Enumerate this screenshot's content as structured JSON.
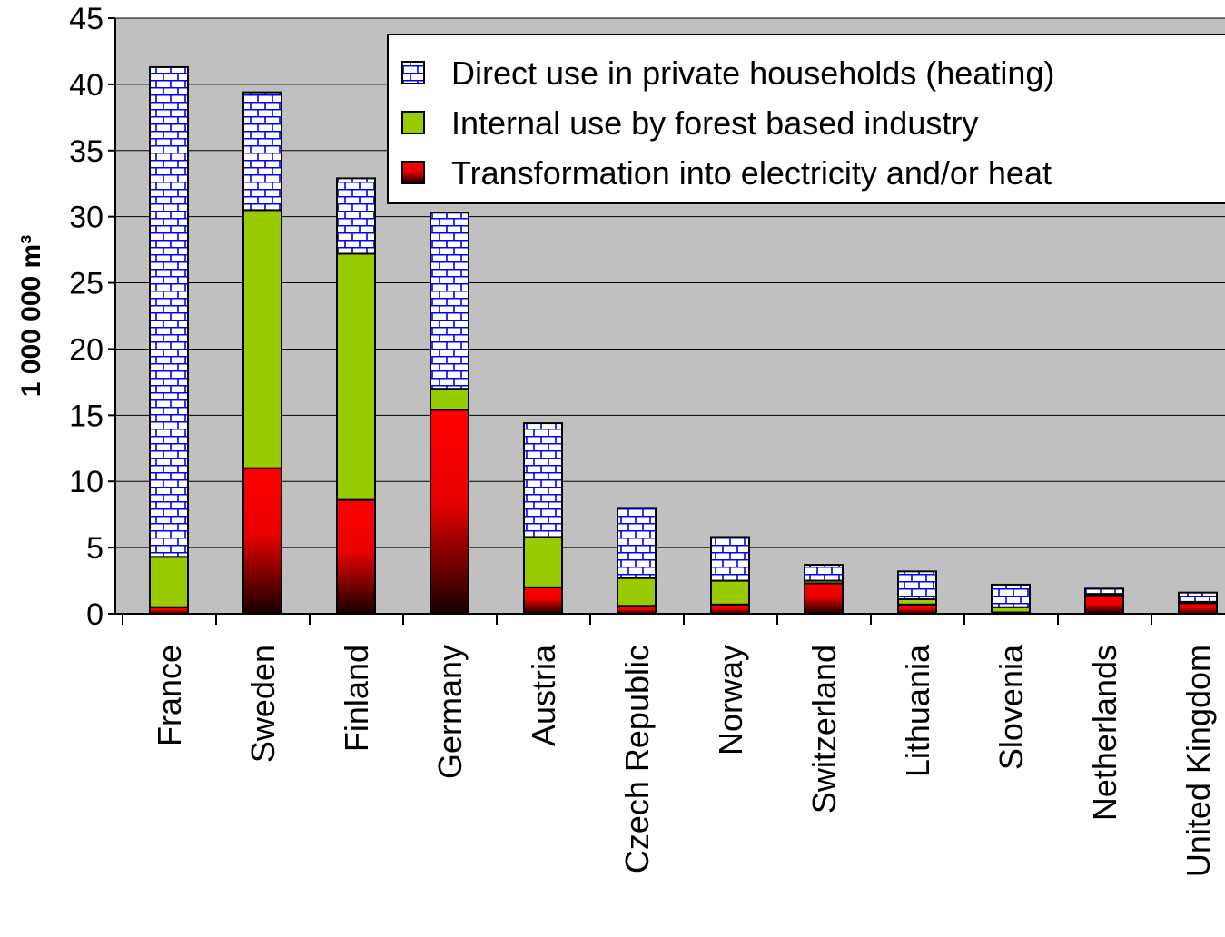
{
  "chart_data": {
    "type": "bar",
    "stacked": true,
    "title": "",
    "xlabel": "",
    "ylabel": "1 000 000 m³",
    "ylim": [
      0,
      45
    ],
    "yticks": [
      "0",
      "5",
      "10",
      "15",
      "20",
      "25",
      "30",
      "35",
      "40",
      "45"
    ],
    "ytick_values": [
      0,
      5,
      10,
      15,
      20,
      25,
      30,
      35,
      40,
      45
    ],
    "grid": true,
    "legend_position": "top-right",
    "plot_background": "#c0c0c0",
    "categories": [
      "France",
      "Sweden",
      "Finland",
      "Germany",
      "Austria",
      "Czech Republic",
      "Norway",
      "Switzerland",
      "Lithuania",
      "Slovenia",
      "Netherlands",
      "United Kingdom"
    ],
    "series": [
      {
        "name": "Transformation into electricity and/or heat",
        "color": "#ff0000",
        "pattern": "red-to-black-gradient",
        "values": [
          0.5,
          11.0,
          8.6,
          15.4,
          2.0,
          0.6,
          0.7,
          2.3,
          0.7,
          0.1,
          1.4,
          0.8
        ]
      },
      {
        "name": "Internal use by forest based industry",
        "color": "#99cc00",
        "pattern": "solid",
        "values": [
          3.8,
          19.5,
          18.6,
          1.6,
          3.8,
          2.1,
          1.8,
          0.2,
          0.4,
          0.4,
          0.1,
          0.1
        ]
      },
      {
        "name": "Direct use in private households (heating)",
        "color": "#0000ff",
        "pattern": "brick",
        "values": [
          37.0,
          8.9,
          5.7,
          13.3,
          8.6,
          5.3,
          3.3,
          1.2,
          2.1,
          1.7,
          0.4,
          0.7
        ]
      }
    ]
  },
  "legend_order": [
    2,
    1,
    0
  ]
}
